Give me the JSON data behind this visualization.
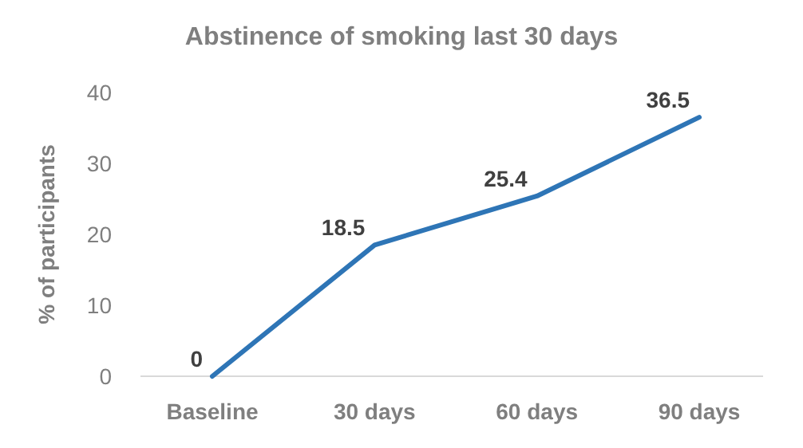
{
  "chart_data": {
    "type": "line",
    "title": "Abstinence of smoking last 30 days",
    "ylabel": "% of participants",
    "categories": [
      "Baseline",
      "30 days",
      "60 days",
      "90 days"
    ],
    "series": [
      {
        "color": "#2e75b6",
        "values": [
          0,
          18.5,
          25.4,
          36.5
        ]
      }
    ],
    "ylim": [
      0,
      40
    ],
    "yticks": [
      0,
      10,
      20,
      30,
      40
    ],
    "data_labels": true,
    "grid": false,
    "marker": "none",
    "line_style": "solid"
  }
}
